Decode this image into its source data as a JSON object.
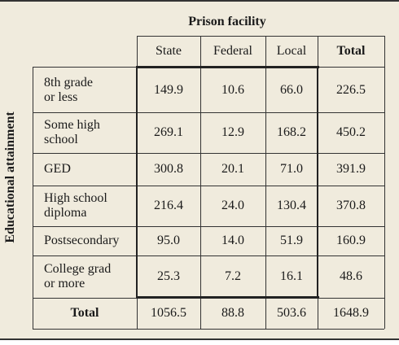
{
  "header": "Prison facility",
  "side_label": "Educational attainment",
  "columns": {
    "state": "State",
    "federal": "Federal",
    "local": "Local",
    "total": "Total"
  },
  "rows": [
    {
      "label_line1": "8th grade",
      "label_line2": "or less",
      "state": "149.9",
      "federal": "10.6",
      "local": "66.0",
      "total": "226.5"
    },
    {
      "label_line1": "Some high",
      "label_line2": "school",
      "state": "269.1",
      "federal": "12.9",
      "local": "168.2",
      "total": "450.2"
    },
    {
      "label_line1": "GED",
      "label_line2": "",
      "state": "300.8",
      "federal": "20.1",
      "local": "71.0",
      "total": "391.9"
    },
    {
      "label_line1": "High school",
      "label_line2": "diploma",
      "state": "216.4",
      "federal": "24.0",
      "local": "130.4",
      "total": "370.8"
    },
    {
      "label_line1": "Postsecondary",
      "label_line2": "",
      "state": "95.0",
      "federal": "14.0",
      "local": "51.9",
      "total": "160.9"
    },
    {
      "label_line1": "College grad",
      "label_line2": "or more",
      "state": "25.3",
      "federal": "7.2",
      "local": "16.1",
      "total": "48.6"
    }
  ],
  "totals": {
    "label": "Total",
    "state": "1056.5",
    "federal": "88.8",
    "local": "503.6",
    "total": "1648.9"
  }
}
